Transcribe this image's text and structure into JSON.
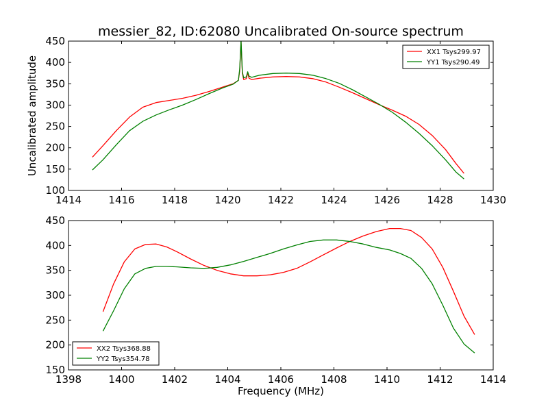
{
  "figure": {
    "title": "messier_82, ID:62080 Uncalibrated On-source spectrum",
    "colors": {
      "XX": "#ff0000",
      "YY": "#008000",
      "frame": "#000000",
      "background": "#ffffff"
    }
  },
  "chart_data": [
    {
      "type": "line",
      "title": "messier_82, ID:62080 Uncalibrated On-source spectrum",
      "xlabel": "",
      "ylabel": "Uncalibrated amplitude",
      "xlim": [
        1414,
        1430
      ],
      "ylim": [
        100,
        450
      ],
      "xticks": [
        "1414",
        "1416",
        "1418",
        "1420",
        "1422",
        "1424",
        "1426",
        "1428",
        "1430"
      ],
      "yticks": [
        "100",
        "150",
        "200",
        "250",
        "300",
        "350",
        "400",
        "450"
      ],
      "grid": false,
      "legend_position": "upper right",
      "series": [
        {
          "name": "XX1 Tsys299.97",
          "color": "#ff0000",
          "x": [
            1414.9,
            1415.3,
            1415.8,
            1416.3,
            1416.8,
            1417.3,
            1417.8,
            1418.3,
            1418.8,
            1419.3,
            1419.8,
            1420.2,
            1420.4,
            1420.45,
            1420.5,
            1420.55,
            1420.6,
            1420.7,
            1420.75,
            1420.8,
            1420.9,
            1421.2,
            1421.7,
            1422.2,
            1422.7,
            1423.2,
            1423.7,
            1424.2,
            1424.7,
            1425.2,
            1425.7,
            1426.2,
            1426.7,
            1427.2,
            1427.7,
            1428.2,
            1428.6,
            1428.9
          ],
          "y": [
            178,
            205,
            240,
            272,
            295,
            306,
            311,
            316,
            323,
            332,
            342,
            350,
            358,
            380,
            448,
            375,
            360,
            362,
            376,
            363,
            360,
            363,
            366,
            367,
            366,
            362,
            354,
            342,
            329,
            315,
            301,
            288,
            274,
            255,
            229,
            196,
            163,
            140
          ]
        },
        {
          "name": "YY1 Tsys290.49",
          "color": "#008000",
          "x": [
            1414.9,
            1415.3,
            1415.8,
            1416.3,
            1416.8,
            1417.3,
            1417.8,
            1418.3,
            1418.8,
            1419.3,
            1419.8,
            1420.2,
            1420.4,
            1420.45,
            1420.5,
            1420.55,
            1420.6,
            1420.7,
            1420.75,
            1420.8,
            1420.9,
            1421.2,
            1421.7,
            1422.2,
            1422.7,
            1423.2,
            1423.7,
            1424.2,
            1424.7,
            1425.2,
            1425.7,
            1426.2,
            1426.7,
            1427.2,
            1427.7,
            1428.2,
            1428.6,
            1428.9
          ],
          "y": [
            148,
            172,
            207,
            240,
            262,
            277,
            289,
            300,
            313,
            327,
            340,
            349,
            358,
            384,
            452,
            378,
            364,
            366,
            378,
            368,
            365,
            370,
            374,
            375,
            374,
            370,
            362,
            351,
            336,
            319,
            302,
            283,
            260,
            234,
            205,
            172,
            143,
            127
          ]
        }
      ]
    },
    {
      "type": "line",
      "title": "",
      "xlabel": "Frequency (MHz)",
      "ylabel": "",
      "xlim": [
        1398,
        1414
      ],
      "ylim": [
        150,
        450
      ],
      "xticks": [
        "1398",
        "1400",
        "1402",
        "1404",
        "1406",
        "1408",
        "1410",
        "1412",
        "1414"
      ],
      "yticks": [
        "150",
        "200",
        "250",
        "300",
        "350",
        "400",
        "450"
      ],
      "grid": false,
      "legend_position": "lower left",
      "series": [
        {
          "name": "XX2 Tsys368.88",
          "color": "#ff0000",
          "x": [
            1399.3,
            1399.7,
            1400.1,
            1400.5,
            1400.9,
            1401.3,
            1401.7,
            1402.1,
            1402.6,
            1403.1,
            1403.6,
            1404.1,
            1404.6,
            1405.1,
            1405.6,
            1406.1,
            1406.6,
            1407.1,
            1407.6,
            1408.1,
            1408.6,
            1409.1,
            1409.6,
            1410.1,
            1410.5,
            1410.9,
            1411.3,
            1411.7,
            1412.1,
            1412.5,
            1412.9,
            1413.3
          ],
          "y": [
            267,
            323,
            367,
            393,
            402,
            403,
            397,
            387,
            373,
            360,
            350,
            343,
            339,
            339,
            341,
            346,
            354,
            367,
            381,
            395,
            408,
            419,
            428,
            434,
            434,
            430,
            416,
            393,
            356,
            308,
            258,
            221
          ]
        },
        {
          "name": "YY2 Tsys354.78",
          "color": "#008000",
          "x": [
            1399.3,
            1399.7,
            1400.1,
            1400.5,
            1400.9,
            1401.3,
            1401.7,
            1402.1,
            1402.6,
            1403.1,
            1403.6,
            1404.1,
            1404.6,
            1405.1,
            1405.6,
            1406.1,
            1406.6,
            1407.1,
            1407.6,
            1408.1,
            1408.6,
            1409.1,
            1409.6,
            1410.1,
            1410.5,
            1410.9,
            1411.3,
            1411.7,
            1412.1,
            1412.5,
            1412.9,
            1413.3
          ],
          "y": [
            228,
            269,
            313,
            343,
            354,
            358,
            358,
            357,
            355,
            354,
            356,
            361,
            368,
            376,
            384,
            393,
            401,
            408,
            411,
            411,
            408,
            403,
            396,
            391,
            384,
            374,
            354,
            323,
            280,
            234,
            202,
            184
          ]
        }
      ]
    }
  ]
}
